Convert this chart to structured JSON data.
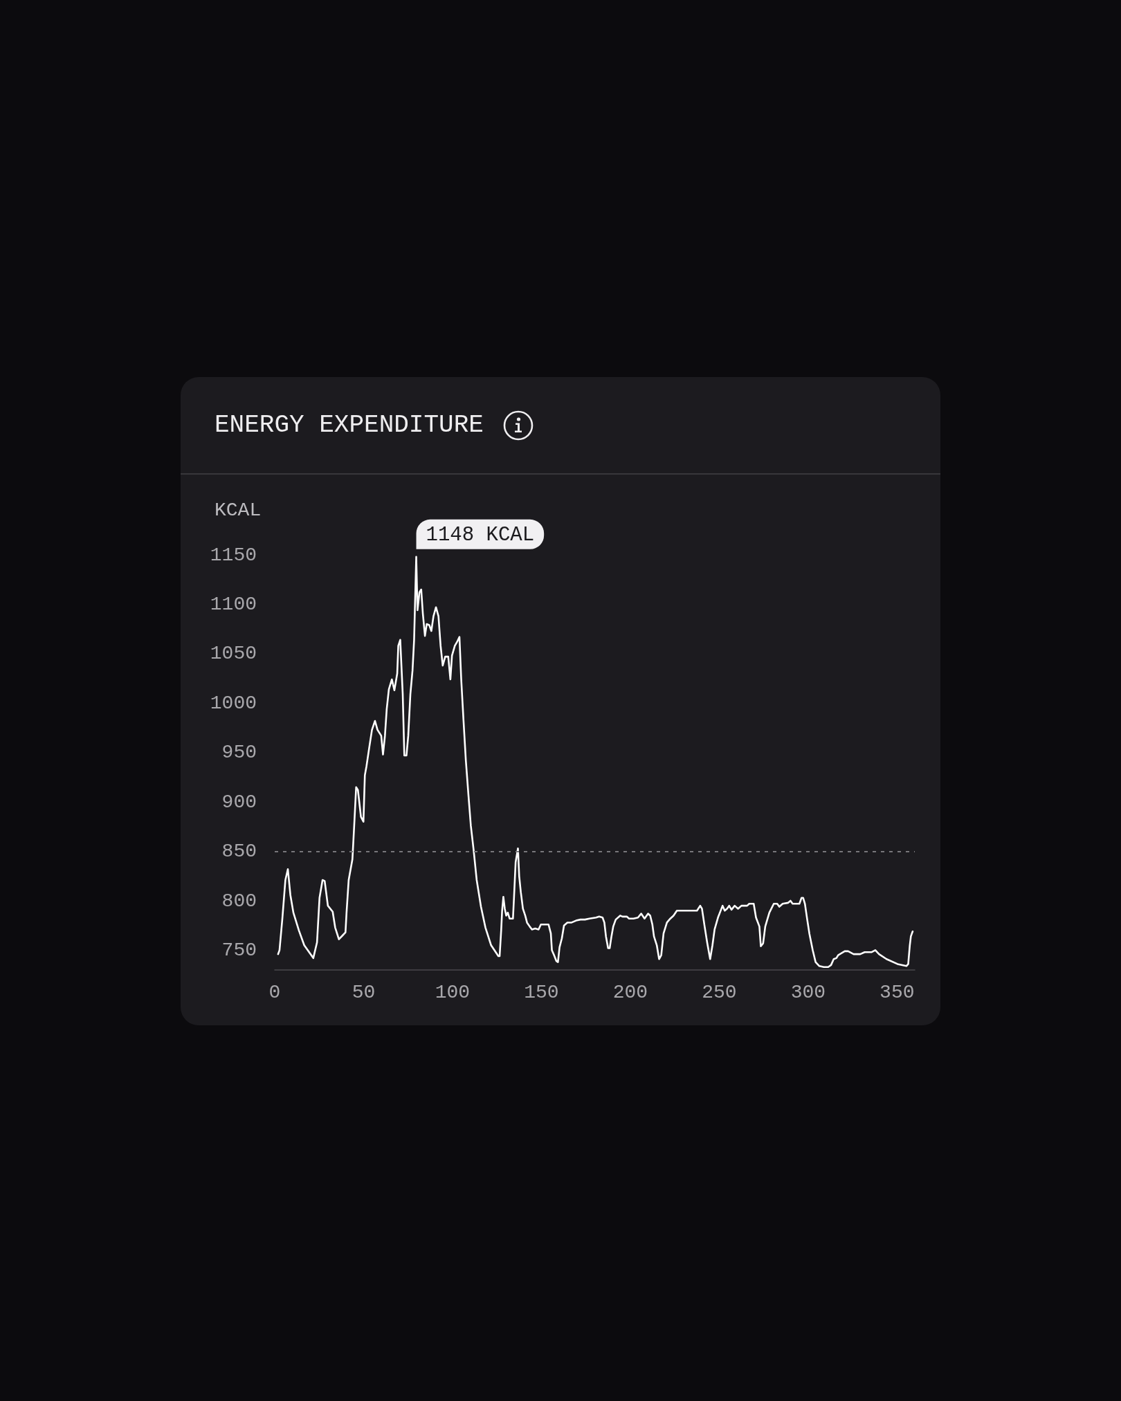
{
  "chart_data": {
    "type": "line",
    "title": "ENERGY EXPENDITURE",
    "ylabel": "KCAL",
    "x": [
      1.9,
      2.7,
      4.3,
      6.0,
      7.4,
      8.8,
      10.5,
      13.6,
      16.6,
      21.7,
      23.8,
      25.2,
      26.9,
      28.1,
      29.9,
      32.6,
      34.0,
      36.1,
      38.2,
      39.8,
      40.4,
      41.6,
      43.7,
      44.7,
      45.8,
      46.8,
      48.5,
      49.9,
      50.7,
      51.6,
      53.0,
      54.7,
      56.4,
      57.8,
      59.9,
      60.9,
      62.0,
      63.0,
      64.2,
      65.9,
      67.3,
      68.9,
      69.5,
      70.6,
      72.0,
      72.9,
      74.1,
      75.1,
      76.3,
      77.5,
      78.4,
      79.6,
      80.3,
      81.4,
      82.4,
      83.3,
      84.5,
      85.5,
      86.9,
      88.1,
      89.3,
      90.7,
      92.1,
      93.3,
      94.5,
      95.9,
      97.6,
      98.8,
      99.7,
      101.3,
      102.6,
      103.9,
      104.9,
      106.2,
      107.5,
      109.0,
      110.3,
      111.9,
      113.6,
      116.0,
      118.5,
      121.7,
      125.8,
      126.5,
      127.4,
      127.9,
      128.6,
      129.4,
      130.2,
      131.1,
      132.1,
      134.0,
      134.6,
      135.5,
      136.8,
      137.5,
      138.4,
      139.6,
      140.9,
      141.9,
      143.4,
      144.7,
      146.5,
      148.4,
      149.7,
      152.1,
      154.0,
      155.3,
      155.9,
      157.1,
      158.4,
      159.3,
      160.2,
      161.5,
      162.7,
      164.6,
      167.0,
      169.5,
      172.0,
      174.5,
      177.0,
      180.7,
      182.5,
      184.4,
      185.4,
      186.3,
      187.5,
      188.4,
      189.4,
      190.4,
      191.8,
      194.3,
      195.6,
      198.0,
      199.3,
      201.8,
      204.3,
      206.1,
      208.0,
      210.0,
      211.2,
      212.4,
      213.3,
      214.9,
      216.2,
      217.4,
      218.7,
      220.6,
      222.5,
      224.3,
      226.2,
      229.4,
      234.3,
      237.5,
      239.3,
      240.3,
      241.8,
      243.3,
      244.9,
      246.2,
      247.4,
      249.3,
      251.9,
      253.1,
      254.4,
      255.6,
      256.9,
      258.7,
      260.6,
      262.5,
      265.7,
      266.9,
      269.4,
      270.7,
      272.6,
      273.4,
      274.7,
      275.9,
      278.2,
      280.7,
      282.6,
      283.8,
      285.7,
      288.8,
      290.1,
      291.3,
      295.1,
      296.3,
      297.2,
      298.2,
      299.5,
      300.7,
      302.6,
      304.2,
      306.3,
      308.8,
      311.3,
      312.9,
      314.4,
      315.9,
      316.9,
      318.8,
      320.6,
      322.5,
      325.6,
      329.3,
      331.8,
      335.6,
      337.8,
      339.9,
      344.1,
      350.3,
      355.3,
      356.3,
      357.2,
      357.8,
      358.8
    ],
    "values": [
      746,
      750,
      782,
      821,
      832,
      806,
      788,
      770,
      755,
      742,
      758,
      803,
      821,
      820,
      795,
      789,
      773,
      761,
      765,
      768,
      788,
      821,
      842,
      876,
      915,
      912,
      885,
      880,
      927,
      936,
      953,
      973,
      982,
      973,
      967,
      948,
      967,
      994,
      1014,
      1024,
      1013,
      1030,
      1058,
      1064,
      1009,
      947,
      947,
      967,
      1009,
      1033,
      1064,
      1148,
      1094,
      1112,
      1115,
      1091,
      1068,
      1080,
      1079,
      1073,
      1088,
      1097,
      1088,
      1058,
      1038,
      1047,
      1047,
      1024,
      1048,
      1058,
      1062,
      1067,
      1024,
      982,
      942,
      906,
      876,
      851,
      821,
      794,
      773,
      755,
      744,
      744,
      771,
      790,
      804,
      792,
      785,
      788,
      782,
      782,
      804,
      839,
      853,
      825,
      809,
      792,
      785,
      778,
      774,
      771,
      772,
      771,
      776,
      776,
      776,
      767,
      750,
      745,
      739,
      738,
      753,
      762,
      775,
      778,
      778,
      780,
      781,
      781,
      782,
      783,
      784,
      783,
      778,
      764,
      752,
      752,
      764,
      774,
      781,
      785,
      784,
      784,
      782,
      782,
      783,
      787,
      782,
      787,
      785,
      776,
      764,
      755,
      741,
      745,
      767,
      778,
      782,
      785,
      790,
      790,
      790,
      790,
      795,
      792,
      774,
      757,
      741,
      755,
      771,
      783,
      795,
      790,
      792,
      795,
      791,
      795,
      792,
      795,
      795,
      797,
      797,
      783,
      774,
      754,
      757,
      774,
      788,
      797,
      797,
      794,
      797,
      798,
      800,
      797,
      797,
      803,
      803,
      797,
      781,
      767,
      750,
      738,
      734,
      733,
      733,
      735,
      741,
      742,
      745,
      747,
      749,
      749,
      746,
      746,
      748,
      748,
      750,
      746,
      741,
      736,
      734,
      736,
      755,
      764,
      769
    ],
    "color": "#ffffff",
    "xlim": [
      0,
      360
    ],
    "ylim": [
      730,
      1150
    ],
    "xticks": [
      0,
      50,
      100,
      150,
      200,
      250,
      300,
      350
    ],
    "yticks": [
      750,
      800,
      850,
      900,
      950,
      1000,
      1050,
      1100,
      1150
    ],
    "marker": "none",
    "line_style": "solid",
    "ref_lines": [
      {
        "axis": "y",
        "value": 850,
        "color": "#78777b",
        "line_style": "dashed"
      }
    ],
    "annotations": [
      {
        "text": "1148 KCAL",
        "x": 79.6,
        "y": 1148
      }
    ]
  }
}
